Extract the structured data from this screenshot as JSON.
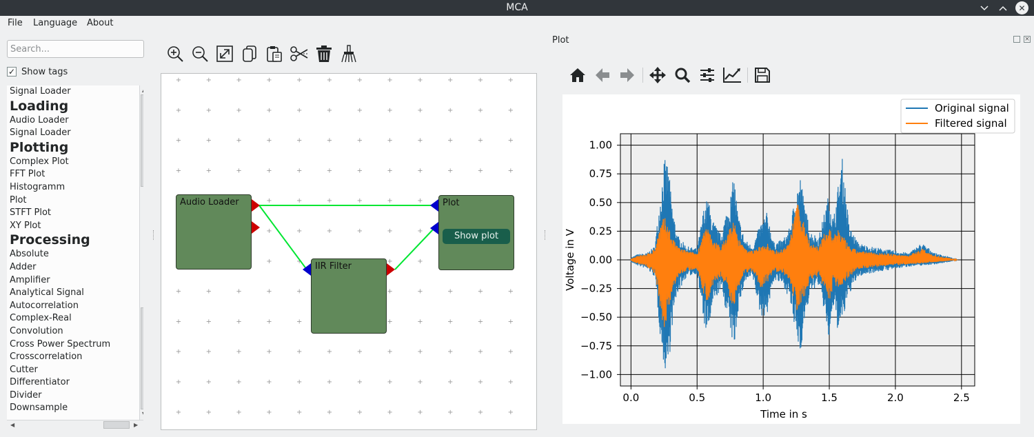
{
  "window": {
    "title": "MCA"
  },
  "menu": [
    "File",
    "Language",
    "About"
  ],
  "sidebar": {
    "search_placeholder": "Search...",
    "show_tags_label": "Show tags",
    "show_tags_checked": true,
    "items": [
      {
        "text": "Signal Loader",
        "heading": false
      },
      {
        "text": "Loading",
        "heading": true
      },
      {
        "text": "Audio Loader",
        "heading": false
      },
      {
        "text": "Signal Loader",
        "heading": false
      },
      {
        "text": "Plotting",
        "heading": true
      },
      {
        "text": "Complex Plot",
        "heading": false
      },
      {
        "text": "FFT Plot",
        "heading": false
      },
      {
        "text": "Histogramm",
        "heading": false
      },
      {
        "text": "Plot",
        "heading": false
      },
      {
        "text": "STFT Plot",
        "heading": false
      },
      {
        "text": "XY Plot",
        "heading": false
      },
      {
        "text": "Processing",
        "heading": true
      },
      {
        "text": "Absolute",
        "heading": false
      },
      {
        "text": "Adder",
        "heading": false
      },
      {
        "text": "Amplifier",
        "heading": false
      },
      {
        "text": "Analytical Signal",
        "heading": false
      },
      {
        "text": "Autocorrelation",
        "heading": false
      },
      {
        "text": "Complex-Real",
        "heading": false
      },
      {
        "text": "Convolution",
        "heading": false
      },
      {
        "text": "Cross Power Spectrum",
        "heading": false
      },
      {
        "text": "Crosscorrelation",
        "heading": false
      },
      {
        "text": "Cutter",
        "heading": false
      },
      {
        "text": "Differentiator",
        "heading": false
      },
      {
        "text": "Divider",
        "heading": false
      },
      {
        "text": "Downsample",
        "heading": false
      }
    ]
  },
  "editor_toolbar": [
    "zoom-in-icon",
    "zoom-out-icon",
    "fit-view-icon",
    "copy-icon",
    "paste-icon",
    "cut-icon",
    "delete-icon",
    "clear-icon"
  ],
  "nodes": {
    "audio_loader": {
      "title": "Audio Loader"
    },
    "iir_filter": {
      "title": "IIR Filter"
    },
    "plot": {
      "title": "Plot",
      "button": "Show plot"
    }
  },
  "plot_dock": {
    "title": "Plot",
    "toolbar": [
      "home-icon",
      "back-icon",
      "forward-icon",
      "pan-icon",
      "zoom-icon",
      "configure-subplots-icon",
      "edit-axis-icon",
      "save-icon"
    ]
  },
  "colors": {
    "node_fill": "#61895a",
    "connection": "#00e632",
    "output_port": "#cc0000",
    "input_port": "#0000cc",
    "original_signal": "#1f77b4",
    "filtered_signal": "#ff7f0e"
  },
  "chart_data": {
    "type": "line",
    "xlabel": "Time in s",
    "ylabel": "Voltage in V",
    "xlim": [
      -0.08,
      2.6
    ],
    "ylim": [
      -1.1,
      1.1
    ],
    "xticks": [
      "0.0",
      "0.5",
      "1.0",
      "1.5",
      "2.0",
      "2.5"
    ],
    "yticks": [
      "1.00",
      "0.75",
      "0.50",
      "0.25",
      "0.00",
      "−0.25",
      "−0.50",
      "−0.75",
      "−1.00"
    ],
    "xtick_values": [
      0,
      0.5,
      1.0,
      1.5,
      2.0,
      2.5
    ],
    "ytick_values": [
      1.0,
      0.75,
      0.5,
      0.25,
      0,
      -0.25,
      -0.5,
      -0.75,
      -1.0
    ],
    "grid": true,
    "legend_position": "top-right",
    "series": [
      {
        "name": "Original signal",
        "color": "#1f77b4",
        "envelope_t": [
          0.0,
          0.05,
          0.12,
          0.18,
          0.22,
          0.25,
          0.28,
          0.31,
          0.35,
          0.42,
          0.5,
          0.55,
          0.58,
          0.62,
          0.68,
          0.72,
          0.75,
          0.78,
          0.81,
          0.86,
          0.92,
          0.98,
          1.03,
          1.08,
          1.15,
          1.2,
          1.25,
          1.28,
          1.32,
          1.36,
          1.42,
          1.47,
          1.5,
          1.53,
          1.57,
          1.6,
          1.65,
          1.72,
          1.8,
          1.9,
          2.0,
          2.1,
          2.2,
          2.3,
          2.4,
          2.47
        ],
        "envelope_upper": [
          0.02,
          0.05,
          0.06,
          0.12,
          0.55,
          0.88,
          0.85,
          0.5,
          0.22,
          0.12,
          0.1,
          0.45,
          0.55,
          0.35,
          0.22,
          0.42,
          0.55,
          0.75,
          0.4,
          0.18,
          0.12,
          0.32,
          0.42,
          0.15,
          0.18,
          0.28,
          0.62,
          0.75,
          0.45,
          0.25,
          0.2,
          0.45,
          0.6,
          0.35,
          0.68,
          0.9,
          0.3,
          0.15,
          0.12,
          0.1,
          0.08,
          0.06,
          0.15,
          0.06,
          0.03,
          0.0
        ],
        "envelope_lower": [
          -0.02,
          -0.05,
          -0.08,
          -0.15,
          -0.65,
          -0.95,
          -1.0,
          -0.6,
          -0.3,
          -0.15,
          -0.12,
          -0.55,
          -0.68,
          -0.4,
          -0.25,
          -0.45,
          -0.62,
          -0.8,
          -0.45,
          -0.2,
          -0.15,
          -0.5,
          -0.48,
          -0.18,
          -0.22,
          -0.35,
          -0.7,
          -0.82,
          -0.5,
          -0.28,
          -0.22,
          -0.5,
          -0.75,
          -0.42,
          -0.65,
          -0.55,
          -0.3,
          -0.15,
          -0.12,
          -0.1,
          -0.08,
          -0.06,
          -0.05,
          -0.04,
          -0.02,
          0.0
        ]
      },
      {
        "name": "Filtered signal",
        "color": "#ff7f0e",
        "envelope_t": [
          0.0,
          0.05,
          0.12,
          0.18,
          0.22,
          0.25,
          0.28,
          0.31,
          0.35,
          0.42,
          0.5,
          0.55,
          0.58,
          0.62,
          0.68,
          0.72,
          0.75,
          0.78,
          0.81,
          0.86,
          0.92,
          0.98,
          1.03,
          1.08,
          1.15,
          1.2,
          1.25,
          1.28,
          1.32,
          1.36,
          1.42,
          1.47,
          1.5,
          1.53,
          1.57,
          1.6,
          1.65,
          1.72,
          1.8,
          1.9,
          2.0,
          2.1,
          2.2,
          2.3,
          2.4,
          2.47
        ],
        "envelope_upper": [
          0.01,
          0.04,
          0.05,
          0.1,
          0.3,
          0.38,
          0.32,
          0.2,
          0.12,
          0.08,
          0.06,
          0.25,
          0.28,
          0.18,
          0.12,
          0.2,
          0.3,
          0.35,
          0.2,
          0.1,
          0.08,
          0.12,
          0.16,
          0.08,
          0.1,
          0.15,
          0.52,
          0.42,
          0.3,
          0.15,
          0.12,
          0.25,
          0.3,
          0.2,
          0.28,
          0.22,
          0.12,
          0.08,
          0.07,
          0.06,
          0.05,
          0.04,
          0.1,
          0.04,
          0.02,
          0.0
        ],
        "envelope_lower": [
          -0.01,
          -0.04,
          -0.06,
          -0.12,
          -0.42,
          -0.6,
          -0.5,
          -0.3,
          -0.16,
          -0.1,
          -0.08,
          -0.3,
          -0.38,
          -0.22,
          -0.15,
          -0.25,
          -0.38,
          -0.4,
          -0.25,
          -0.12,
          -0.1,
          -0.25,
          -0.2,
          -0.1,
          -0.12,
          -0.18,
          -0.45,
          -0.42,
          -0.3,
          -0.18,
          -0.14,
          -0.28,
          -0.38,
          -0.22,
          -0.25,
          -0.22,
          -0.15,
          -0.08,
          -0.07,
          -0.06,
          -0.05,
          -0.04,
          -0.03,
          -0.02,
          -0.01,
          0.0
        ]
      }
    ]
  }
}
